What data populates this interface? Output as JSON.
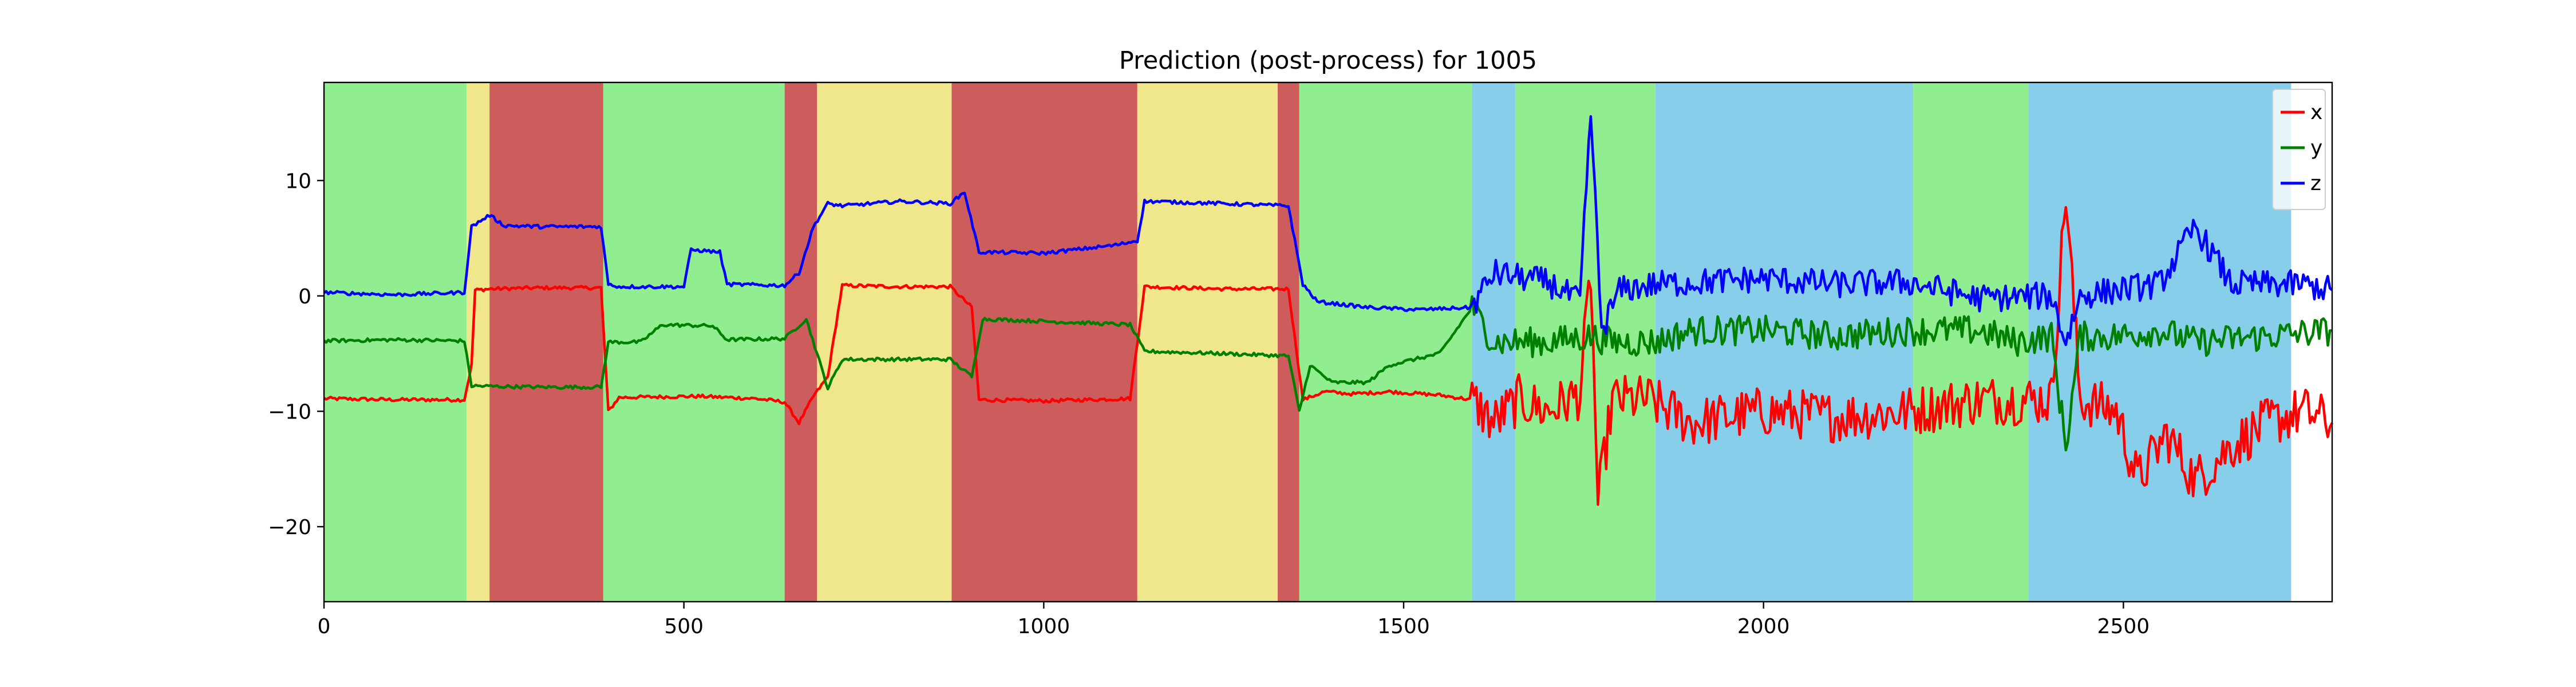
{
  "chart_data": {
    "type": "line",
    "title": "Prediction (post-process) for 1005",
    "xlabel": "",
    "ylabel": "",
    "xlim": [
      0,
      2790
    ],
    "ylim": [
      -26.5,
      18.5
    ],
    "x_ticks": [
      0,
      500,
      1000,
      1500,
      2000,
      2500
    ],
    "y_ticks": [
      -20,
      -10,
      0,
      10
    ],
    "x_tick_labels": [
      "0",
      "500",
      "1000",
      "1500",
      "2000",
      "2500"
    ],
    "y_tick_labels": [
      "−20",
      "−10",
      "0",
      "10"
    ],
    "grid": false,
    "legend_position": "top-right",
    "class_colors": {
      "green": "#90ee90",
      "yellow": "#f0e68c",
      "red": "#cd5c5c",
      "blue": "#87ceeb"
    },
    "regions": [
      {
        "start": 0,
        "end": 198,
        "class": "green"
      },
      {
        "start": 198,
        "end": 230,
        "class": "yellow"
      },
      {
        "start": 230,
        "end": 388,
        "class": "red"
      },
      {
        "start": 388,
        "end": 640,
        "class": "green"
      },
      {
        "start": 640,
        "end": 685,
        "class": "red"
      },
      {
        "start": 685,
        "end": 872,
        "class": "yellow"
      },
      {
        "start": 872,
        "end": 1130,
        "class": "red"
      },
      {
        "start": 1130,
        "end": 1325,
        "class": "yellow"
      },
      {
        "start": 1325,
        "end": 1355,
        "class": "red"
      },
      {
        "start": 1355,
        "end": 1595,
        "class": "green"
      },
      {
        "start": 1595,
        "end": 1655,
        "class": "blue"
      },
      {
        "start": 1655,
        "end": 1850,
        "class": "green"
      },
      {
        "start": 1850,
        "end": 2208,
        "class": "blue"
      },
      {
        "start": 2208,
        "end": 2368,
        "class": "green"
      },
      {
        "start": 2368,
        "end": 2733,
        "class": "blue"
      }
    ],
    "series": [
      {
        "name": "x",
        "color": "#ff0000",
        "points": [
          [
            0,
            -8.9
          ],
          [
            100,
            -9.0
          ],
          [
            195,
            -9.0
          ],
          [
            205,
            -6
          ],
          [
            210,
            0.5
          ],
          [
            230,
            0.6
          ],
          [
            300,
            0.7
          ],
          [
            385,
            0.7
          ],
          [
            395,
            -10
          ],
          [
            410,
            -8.8
          ],
          [
            520,
            -8.7
          ],
          [
            600,
            -8.9
          ],
          [
            640,
            -9.2
          ],
          [
            660,
            -11
          ],
          [
            680,
            -8.7
          ],
          [
            700,
            -7
          ],
          [
            720,
            0.9
          ],
          [
            800,
            0.8
          ],
          [
            870,
            0.8
          ],
          [
            900,
            -1
          ],
          [
            910,
            -9
          ],
          [
            1000,
            -9.1
          ],
          [
            1120,
            -8.9
          ],
          [
            1140,
            0.8
          ],
          [
            1250,
            0.6
          ],
          [
            1340,
            0.6
          ],
          [
            1360,
            -9
          ],
          [
            1390,
            -8.3
          ],
          [
            1430,
            -8.5
          ],
          [
            1480,
            -8.3
          ],
          [
            1550,
            -8.6
          ],
          [
            1595,
            -9
          ],
          [
            1625,
            -11
          ],
          [
            1660,
            -9
          ],
          [
            1700,
            -10
          ],
          [
            1745,
            -8.5
          ],
          [
            1760,
            2
          ],
          [
            1770,
            -18
          ],
          [
            1790,
            -9
          ],
          [
            1840,
            -9
          ],
          [
            1900,
            -11
          ],
          [
            2000,
            -10
          ],
          [
            2100,
            -10.5
          ],
          [
            2200,
            -10
          ],
          [
            2300,
            -9
          ],
          [
            2400,
            -9
          ],
          [
            2420,
            9
          ],
          [
            2440,
            -9
          ],
          [
            2490,
            -10
          ],
          [
            2520,
            -16
          ],
          [
            2560,
            -12
          ],
          [
            2600,
            -16
          ],
          [
            2650,
            -13
          ],
          [
            2700,
            -11
          ],
          [
            2750,
            -10
          ],
          [
            2790,
            -11
          ]
        ]
      },
      {
        "name": "y",
        "color": "#008000",
        "points": [
          [
            0,
            -3.9
          ],
          [
            100,
            -3.8
          ],
          [
            195,
            -3.9
          ],
          [
            205,
            -7.8
          ],
          [
            300,
            -7.9
          ],
          [
            385,
            -7.9
          ],
          [
            395,
            -4
          ],
          [
            440,
            -4
          ],
          [
            470,
            -2.5
          ],
          [
            540,
            -2.6
          ],
          [
            560,
            -3.8
          ],
          [
            640,
            -3.7
          ],
          [
            670,
            -2
          ],
          [
            700,
            -8
          ],
          [
            720,
            -5.5
          ],
          [
            870,
            -5.5
          ],
          [
            900,
            -7
          ],
          [
            915,
            -2
          ],
          [
            1000,
            -2.2
          ],
          [
            1120,
            -2.5
          ],
          [
            1140,
            -4.8
          ],
          [
            1250,
            -5
          ],
          [
            1340,
            -5.2
          ],
          [
            1355,
            -10
          ],
          [
            1370,
            -6
          ],
          [
            1400,
            -7.5
          ],
          [
            1450,
            -7.5
          ],
          [
            1480,
            -6
          ],
          [
            1550,
            -5
          ],
          [
            1595,
            -1
          ],
          [
            1625,
            -4
          ],
          [
            1700,
            -4
          ],
          [
            1760,
            -3.5
          ],
          [
            1790,
            -4
          ],
          [
            1850,
            -4
          ],
          [
            1900,
            -3
          ],
          [
            2000,
            -3
          ],
          [
            2100,
            -3.5
          ],
          [
            2200,
            -3
          ],
          [
            2300,
            -3
          ],
          [
            2350,
            -4
          ],
          [
            2400,
            -3.5
          ],
          [
            2420,
            -13
          ],
          [
            2440,
            -3.5
          ],
          [
            2490,
            -3.5
          ],
          [
            2550,
            -3
          ],
          [
            2600,
            -4
          ],
          [
            2700,
            -3.5
          ],
          [
            2790,
            -3
          ]
        ]
      },
      {
        "name": "z",
        "color": "#0000ff",
        "points": [
          [
            0,
            0.3
          ],
          [
            100,
            0.1
          ],
          [
            195,
            0.3
          ],
          [
            205,
            6
          ],
          [
            230,
            7
          ],
          [
            250,
            6.1
          ],
          [
            300,
            6
          ],
          [
            385,
            6
          ],
          [
            395,
            1
          ],
          [
            410,
            0.8
          ],
          [
            500,
            0.8
          ],
          [
            510,
            4
          ],
          [
            550,
            3.8
          ],
          [
            560,
            1
          ],
          [
            640,
            0.9
          ],
          [
            660,
            2
          ],
          [
            680,
            6
          ],
          [
            700,
            8
          ],
          [
            720,
            7.8
          ],
          [
            800,
            8.2
          ],
          [
            870,
            8
          ],
          [
            890,
            9
          ],
          [
            910,
            3.8
          ],
          [
            1000,
            3.7
          ],
          [
            1100,
            4.4
          ],
          [
            1130,
            4.8
          ],
          [
            1140,
            8.2
          ],
          [
            1250,
            8
          ],
          [
            1340,
            7.8
          ],
          [
            1360,
            1
          ],
          [
            1380,
            -0.5
          ],
          [
            1450,
            -1
          ],
          [
            1520,
            -1.2
          ],
          [
            1595,
            -1
          ],
          [
            1625,
            2
          ],
          [
            1700,
            1.2
          ],
          [
            1745,
            -0.5
          ],
          [
            1760,
            16
          ],
          [
            1775,
            -3
          ],
          [
            1800,
            0.5
          ],
          [
            1850,
            1
          ],
          [
            2000,
            1.5
          ],
          [
            2100,
            1
          ],
          [
            2200,
            1.2
          ],
          [
            2300,
            -0.2
          ],
          [
            2400,
            0
          ],
          [
            2420,
            -4
          ],
          [
            2440,
            0
          ],
          [
            2490,
            0.5
          ],
          [
            2550,
            1
          ],
          [
            2600,
            6
          ],
          [
            2650,
            1
          ],
          [
            2700,
            1
          ],
          [
            2750,
            1
          ],
          [
            2790,
            0.5
          ]
        ]
      }
    ]
  }
}
